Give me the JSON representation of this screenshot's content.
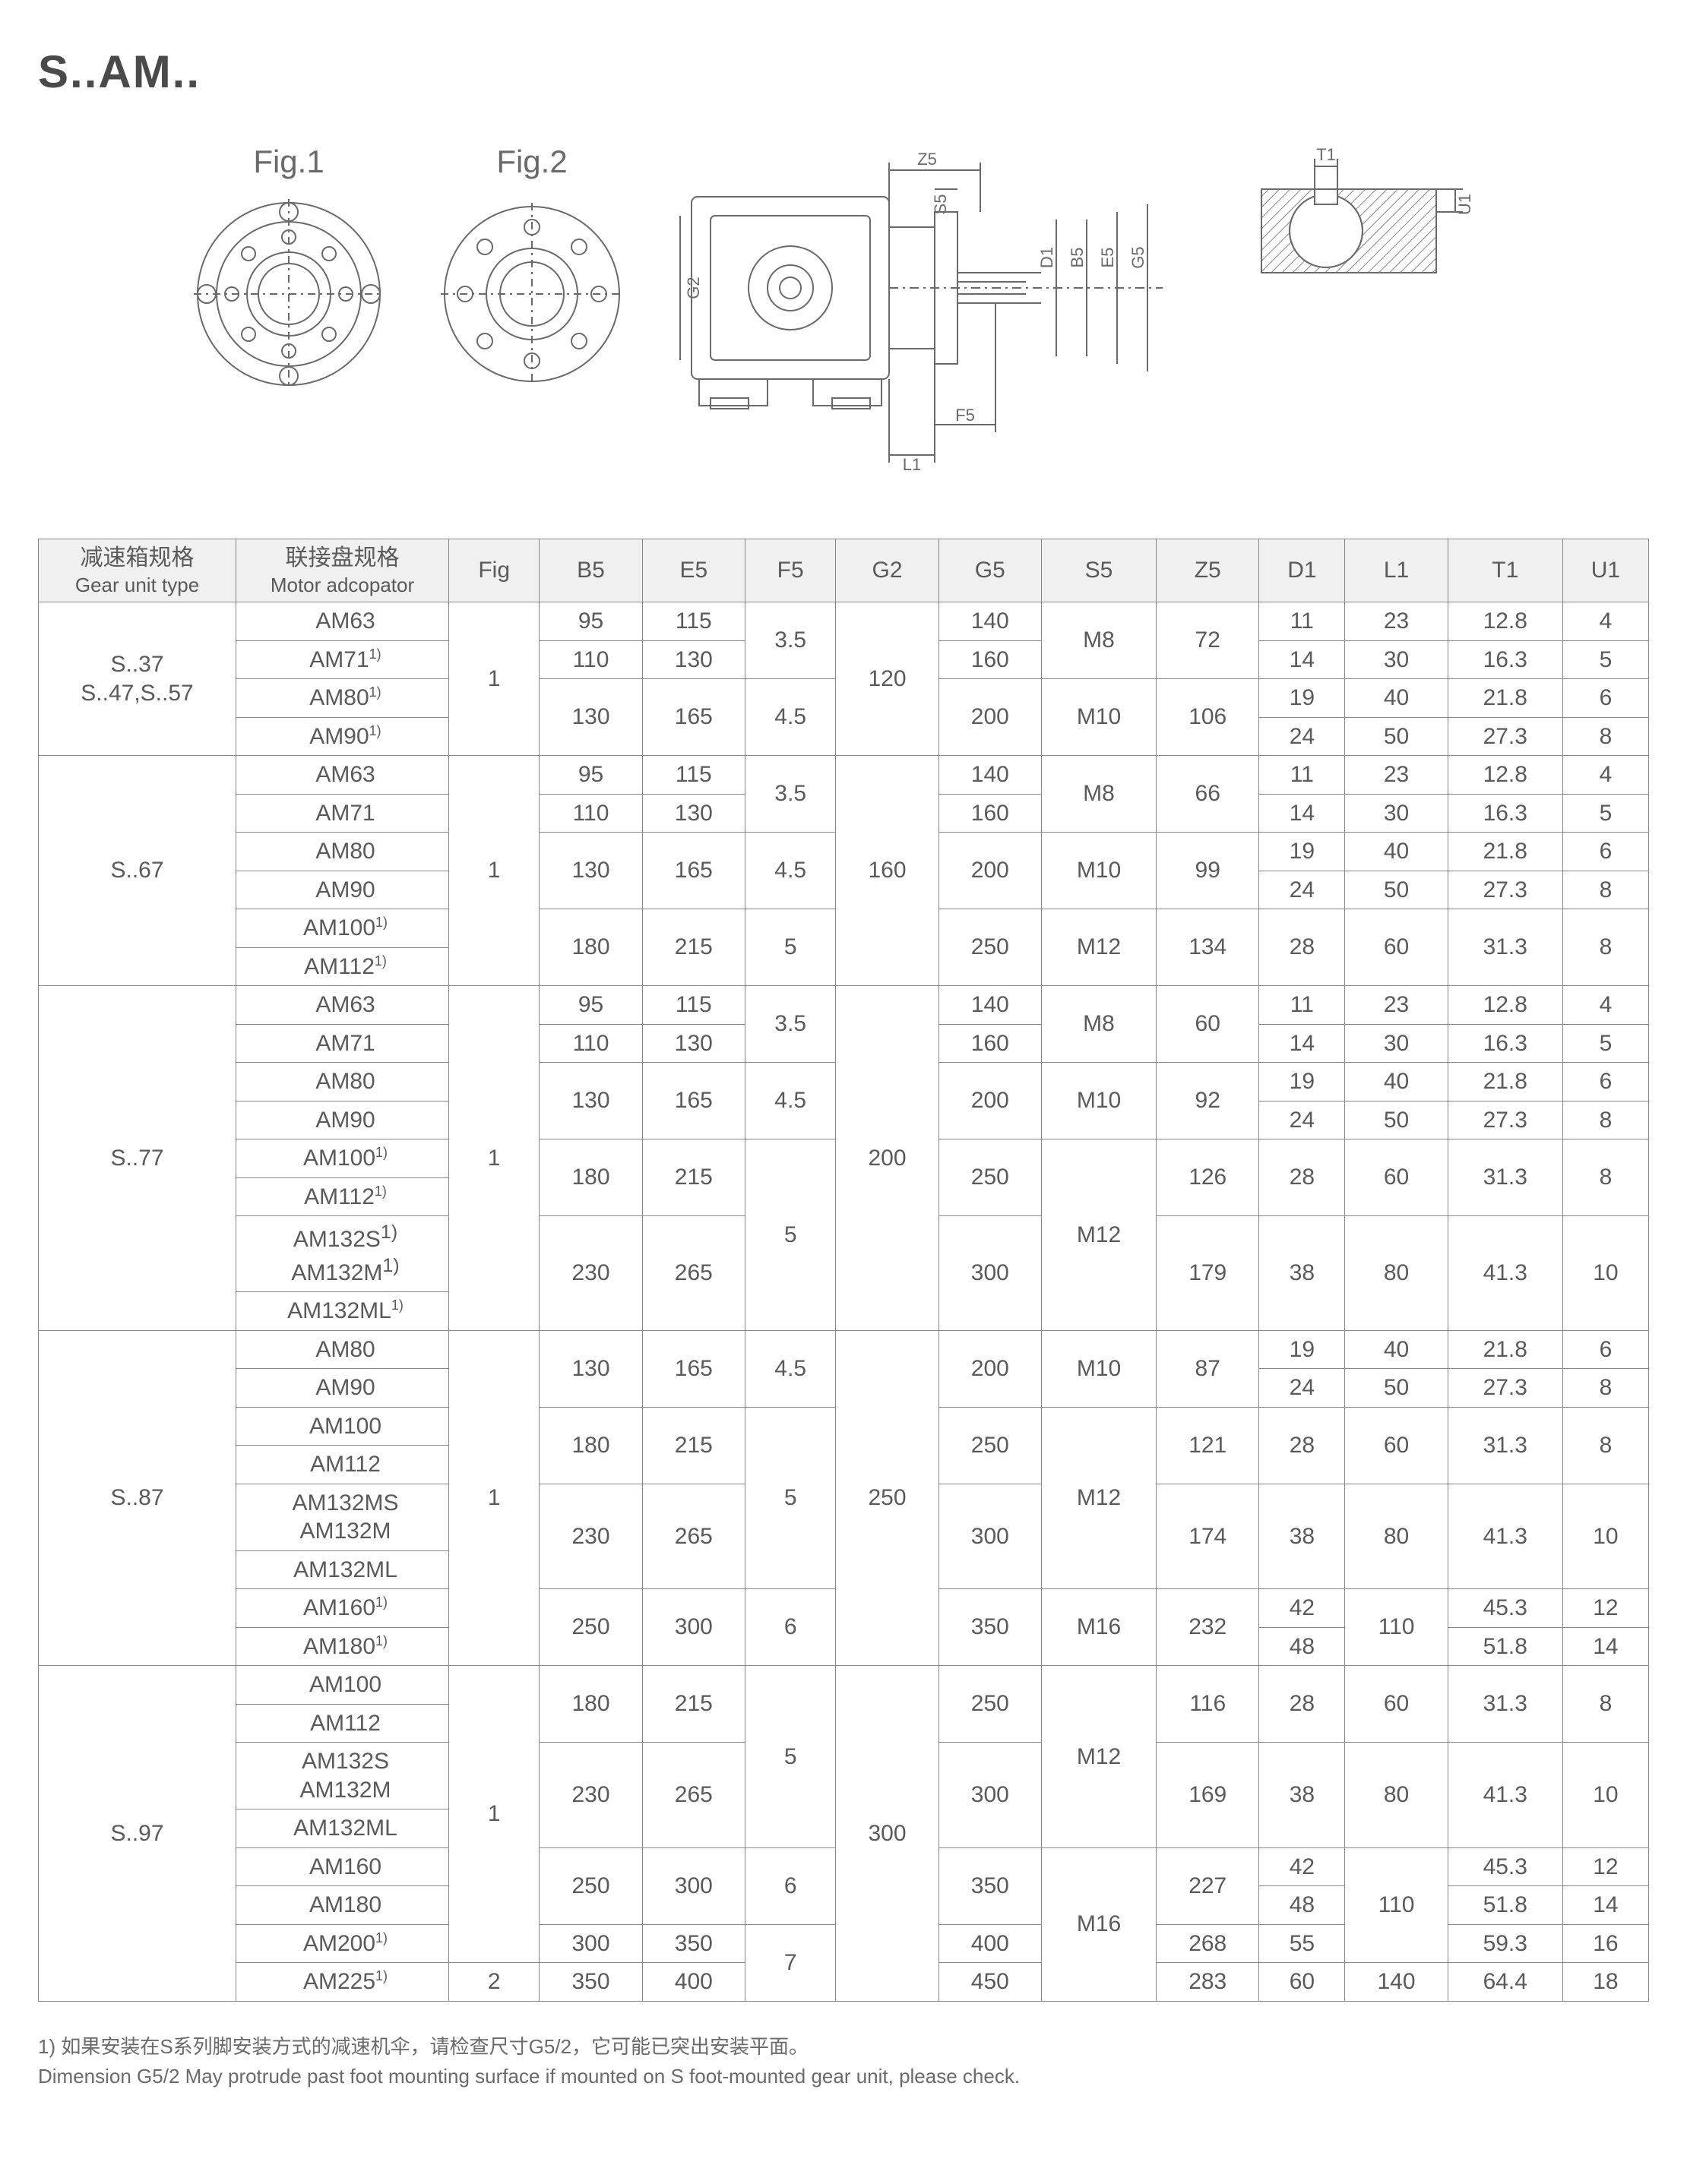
{
  "title": "S..AM..",
  "fig1_label": "Fig.1",
  "fig2_label": "Fig.2",
  "diagram_labels": {
    "Z5": "Z5",
    "S5": "S5",
    "D1": "D1",
    "B5": "B5",
    "E5": "E5",
    "G5": "G5",
    "G2": "G2",
    "F5": "F5",
    "L1": "L1",
    "T1": "T1",
    "U1": "U1"
  },
  "header": {
    "gear_cn": "减速箱规格",
    "gear_en": "Gear unit type",
    "motor_cn": "联接盘规格",
    "motor_en": "Motor adcopator",
    "cols": [
      "Fig",
      "B5",
      "E5",
      "F5",
      "G2",
      "G5",
      "S5",
      "Z5",
      "D1",
      "L1",
      "T1",
      "U1"
    ]
  },
  "groups": [
    {
      "gear": "S..37\nS..47,S..57",
      "rows": [
        {
          "motor": "AM63",
          "fn": "",
          "Fig": "1",
          "B5": "95",
          "E5": "115",
          "F5": "3.5",
          "G2": "120",
          "G5": "140",
          "S5": "M8",
          "Z5": "72",
          "D1": "11",
          "L1": "23",
          "T1": "12.8",
          "U1": "4"
        },
        {
          "motor": "AM71",
          "fn": "1)",
          "B5": "110",
          "E5": "130",
          "G5": "160",
          "D1": "14",
          "L1": "30",
          "T1": "16.3",
          "U1": "5"
        },
        {
          "motor": "AM80",
          "fn": "1)",
          "B5": "130",
          "E5": "165",
          "F5": "4.5",
          "G5": "200",
          "S5": "M10",
          "Z5": "106",
          "D1": "19",
          "L1": "40",
          "T1": "21.8",
          "U1": "6"
        },
        {
          "motor": "AM90",
          "fn": "1)",
          "D1": "24",
          "L1": "50",
          "T1": "27.3",
          "U1": "8"
        }
      ],
      "spans": {
        "Fig": 4,
        "G2": 4,
        "F5": [
          2,
          2
        ],
        "B5": [
          1,
          1,
          2
        ],
        "E5": [
          1,
          1,
          2
        ],
        "G5": [
          1,
          1,
          2
        ],
        "S5": [
          2,
          2
        ],
        "Z5": [
          2,
          2
        ]
      }
    },
    {
      "gear": "S..67",
      "rows": [
        {
          "motor": "AM63",
          "Fig": "1",
          "B5": "95",
          "E5": "115",
          "F5": "3.5",
          "G2": "160",
          "G5": "140",
          "S5": "M8",
          "Z5": "66",
          "D1": "11",
          "L1": "23",
          "T1": "12.8",
          "U1": "4"
        },
        {
          "motor": "AM71",
          "B5": "110",
          "E5": "130",
          "G5": "160",
          "D1": "14",
          "L1": "30",
          "T1": "16.3",
          "U1": "5"
        },
        {
          "motor": "AM80",
          "B5": "130",
          "E5": "165",
          "F5": "4.5",
          "G5": "200",
          "S5": "M10",
          "Z5": "99",
          "D1": "19",
          "L1": "40",
          "T1": "21.8",
          "U1": "6"
        },
        {
          "motor": "AM90",
          "D1": "24",
          "L1": "50",
          "T1": "27.3",
          "U1": "8"
        },
        {
          "motor": "AM100",
          "fn": "1)",
          "B5": "180",
          "E5": "215",
          "F5": "5",
          "G5": "250",
          "S5": "M12",
          "Z5": "134",
          "D1": "28",
          "L1": "60",
          "T1": "31.3",
          "U1": "8"
        },
        {
          "motor": "AM112",
          "fn": "1)"
        }
      ],
      "spans": {
        "Fig": 6,
        "G2": 6,
        "F5": [
          2,
          2,
          2
        ],
        "B5": [
          1,
          1,
          2,
          2
        ],
        "E5": [
          1,
          1,
          2,
          2
        ],
        "G5": [
          1,
          1,
          2,
          2
        ],
        "S5": [
          2,
          2,
          2
        ],
        "Z5": [
          2,
          2,
          2
        ],
        "D1": [
          1,
          1,
          1,
          1,
          2
        ],
        "L1": [
          1,
          1,
          1,
          1,
          2
        ],
        "T1": [
          1,
          1,
          1,
          1,
          2
        ],
        "U1": [
          1,
          1,
          1,
          1,
          2
        ]
      }
    },
    {
      "gear": "S..77",
      "rows": [
        {
          "motor": "AM63",
          "Fig": "1",
          "B5": "95",
          "E5": "115",
          "F5": "3.5",
          "G2": "200",
          "G5": "140",
          "S5": "M8",
          "Z5": "60",
          "D1": "11",
          "L1": "23",
          "T1": "12.8",
          "U1": "4"
        },
        {
          "motor": "AM71",
          "B5": "110",
          "E5": "130",
          "G5": "160",
          "D1": "14",
          "L1": "30",
          "T1": "16.3",
          "U1": "5"
        },
        {
          "motor": "AM80",
          "B5": "130",
          "E5": "165",
          "F5": "4.5",
          "G5": "200",
          "S5": "M10",
          "Z5": "92",
          "D1": "19",
          "L1": "40",
          "T1": "21.8",
          "U1": "6"
        },
        {
          "motor": "AM90",
          "D1": "24",
          "L1": "50",
          "T1": "27.3",
          "U1": "8"
        },
        {
          "motor": "AM100",
          "fn": "1)",
          "B5": "180",
          "E5": "215",
          "F5": "5",
          "G5": "250",
          "S5": "M12",
          "Z5": "126",
          "D1": "28",
          "L1": "60",
          "T1": "31.3",
          "U1": "8"
        },
        {
          "motor": "AM112",
          "fn": "1)"
        },
        {
          "motor": "AM132S<sup>1)</sup><br>AM132M<sup>1)</sup>",
          "raw": true,
          "B5": "230",
          "E5": "265",
          "G5": "300",
          "Z5": "179",
          "D1": "38",
          "L1": "80",
          "T1": "41.3",
          "U1": "10"
        },
        {
          "motor": "AM132ML",
          "fn": "1)"
        }
      ],
      "spans": {
        "Fig": 8,
        "G2": 8,
        "F5": [
          2,
          2,
          4
        ],
        "B5": [
          1,
          1,
          2,
          2,
          2
        ],
        "E5": [
          1,
          1,
          2,
          2,
          2
        ],
        "G5": [
          1,
          1,
          2,
          2,
          2
        ],
        "S5": [
          2,
          2,
          4
        ],
        "Z5": [
          2,
          2,
          2,
          2
        ],
        "D1": [
          1,
          1,
          1,
          1,
          2,
          2
        ],
        "L1": [
          1,
          1,
          1,
          1,
          2,
          2
        ],
        "T1": [
          1,
          1,
          1,
          1,
          2,
          2
        ],
        "U1": [
          1,
          1,
          1,
          1,
          2,
          2
        ]
      }
    },
    {
      "gear": "S..87",
      "rows": [
        {
          "motor": "AM80",
          "Fig": "1",
          "B5": "130",
          "E5": "165",
          "F5": "4.5",
          "G2": "250",
          "G5": "200",
          "S5": "M10",
          "Z5": "87",
          "D1": "19",
          "L1": "40",
          "T1": "21.8",
          "U1": "6"
        },
        {
          "motor": "AM90",
          "D1": "24",
          "L1": "50",
          "T1": "27.3",
          "U1": "8"
        },
        {
          "motor": "AM100",
          "B5": "180",
          "E5": "215",
          "F5": "5",
          "G5": "250",
          "S5": "M12",
          "Z5": "121",
          "D1": "28",
          "L1": "60",
          "T1": "31.3",
          "U1": "8"
        },
        {
          "motor": "AM112"
        },
        {
          "motor": "AM132MS<br>AM132M",
          "raw": true,
          "B5": "230",
          "E5": "265",
          "G5": "300",
          "Z5": "174",
          "D1": "38",
          "L1": "80",
          "T1": "41.3",
          "U1": "10"
        },
        {
          "motor": "AM132ML"
        },
        {
          "motor": "AM160",
          "fn": "1)",
          "B5": "250",
          "E5": "300",
          "F5": "6",
          "G5": "350",
          "S5": "M16",
          "Z5": "232",
          "D1": "42",
          "L1": "110",
          "T1": "45.3",
          "U1": "12"
        },
        {
          "motor": "AM180",
          "fn": "1)",
          "D1": "48",
          "T1": "51.8",
          "U1": "14"
        }
      ],
      "spans": {
        "Fig": 8,
        "G2": 8,
        "F5": [
          2,
          4,
          2
        ],
        "B5": [
          2,
          2,
          2,
          2
        ],
        "E5": [
          2,
          2,
          2,
          2
        ],
        "G5": [
          2,
          2,
          2,
          2
        ],
        "S5": [
          2,
          4,
          2
        ],
        "Z5": [
          2,
          2,
          2,
          2
        ],
        "D1": [
          1,
          1,
          2,
          2,
          1,
          1
        ],
        "L1": [
          1,
          1,
          2,
          2,
          2
        ],
        "T1": [
          1,
          1,
          2,
          2,
          1,
          1
        ],
        "U1": [
          1,
          1,
          2,
          2,
          1,
          1
        ]
      }
    },
    {
      "gear": "S..97",
      "rows": [
        {
          "motor": "AM100",
          "Fig": "1",
          "B5": "180",
          "E5": "215",
          "F5": "5",
          "G2": "300",
          "G5": "250",
          "S5": "M12",
          "Z5": "116",
          "D1": "28",
          "L1": "60",
          "T1": "31.3",
          "U1": "8"
        },
        {
          "motor": "AM112"
        },
        {
          "motor": "AM132S<br>AM132M",
          "raw": true,
          "B5": "230",
          "E5": "265",
          "G5": "300",
          "Z5": "169",
          "D1": "38",
          "L1": "80",
          "T1": "41.3",
          "U1": "10"
        },
        {
          "motor": "AM132ML"
        },
        {
          "motor": "AM160",
          "B5": "250",
          "E5": "300",
          "F5": "6",
          "G5": "350",
          "S5": "M16",
          "Z5": "227",
          "D1": "42",
          "L1": "110",
          "T1": "45.3",
          "U1": "12"
        },
        {
          "motor": "AM180",
          "D1": "48",
          "T1": "51.8",
          "U1": "14"
        },
        {
          "motor": "AM200",
          "fn": "1)",
          "B5": "300",
          "E5": "350",
          "F5": "7",
          "G5": "400",
          "Z5": "268",
          "D1": "55",
          "T1": "59.3",
          "U1": "16"
        },
        {
          "motor": "AM225",
          "fn": "1)",
          "Fig": "2",
          "B5": "350",
          "E5": "400",
          "G5": "450",
          "Z5": "283",
          "D1": "60",
          "L1": "140",
          "T1": "64.4",
          "U1": "18"
        }
      ],
      "spans": {
        "Fig": [
          7,
          1
        ],
        "G2": 8,
        "F5": [
          4,
          2,
          2
        ],
        "B5": [
          2,
          2,
          2,
          1,
          1
        ],
        "E5": [
          2,
          2,
          2,
          1,
          1
        ],
        "G5": [
          2,
          2,
          2,
          1,
          1
        ],
        "S5": [
          4,
          4
        ],
        "Z5": [
          2,
          2,
          2,
          1,
          1
        ],
        "D1": [
          2,
          2,
          1,
          1,
          1,
          1
        ],
        "L1": [
          2,
          2,
          3,
          1
        ],
        "T1": [
          2,
          2,
          1,
          1,
          1,
          1
        ],
        "U1": [
          2,
          2,
          1,
          1,
          1,
          1
        ]
      }
    }
  ],
  "footnote_cn": "1) 如果安装在S系列脚安装方式的减速机伞，请检查尺寸G5/2，它可能已突出安装平面。",
  "footnote_en": "Dimension G5/2 May protrude past foot mounting surface if mounted on S foot-mounted gear unit, please check.",
  "colors": {
    "stroke": "#6a6a6a",
    "fill": "#ffffff",
    "hatch": "#888888"
  }
}
